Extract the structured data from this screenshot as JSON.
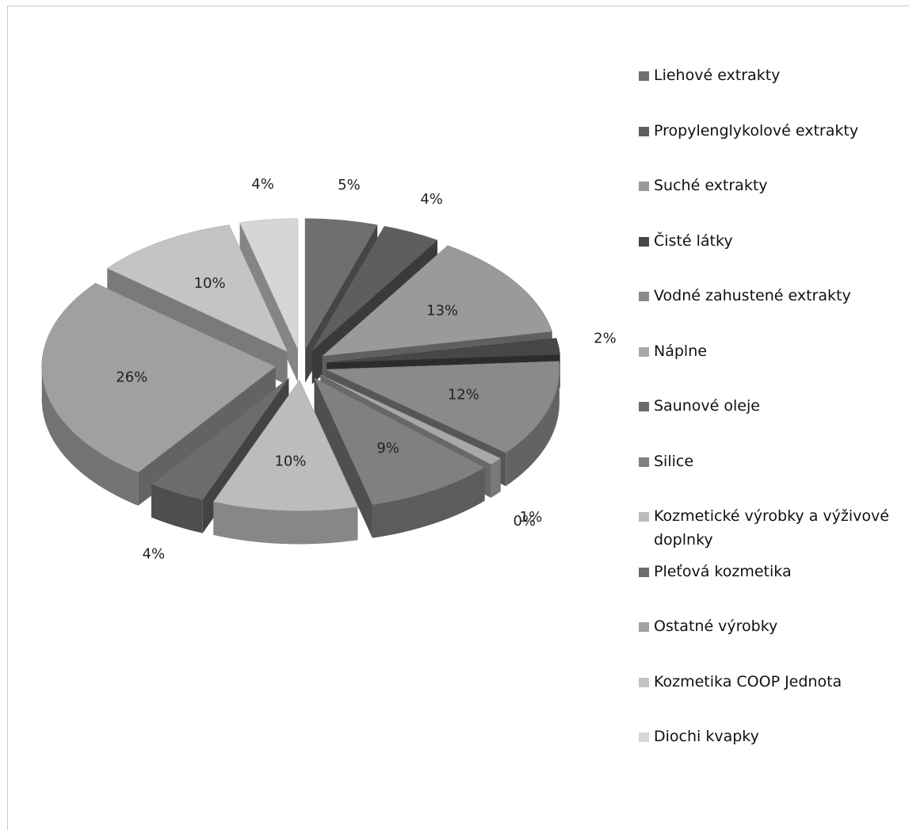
{
  "chart_data": {
    "type": "pie",
    "categories": [
      "Liehové extrakty",
      "Propylenglykolové extrakty",
      "Suché extrakty",
      "Čisté látky",
      "Vodné zahustené extrakty",
      "Náplne",
      "Saunové oleje",
      "Silice",
      "Kozmetické výrobky a výživové doplnky",
      "Pleťová kozmetika",
      "Ostatné výrobky",
      "Kozmetika COOP Jednota",
      "Diochi kvapky"
    ],
    "values": [
      5,
      4,
      13,
      2,
      12,
      1,
      0,
      9,
      10,
      4,
      26,
      10,
      4
    ],
    "labels": [
      "5%",
      "4%",
      "13%",
      "2%",
      "12%",
      "1%",
      "0%",
      "9%",
      "10%",
      "4%",
      "26%",
      "10%",
      "4%"
    ],
    "colors": [
      "#6f6f6f",
      "#5e5e5e",
      "#9a9a9a",
      "#474747",
      "#8a8a8a",
      "#a8a8a8",
      "#6a6a6a",
      "#808080",
      "#bcbcbc",
      "#6c6c6c",
      "#a0a0a0",
      "#c4c4c4",
      "#d6d6d6"
    ],
    "legend_position": "right",
    "style": "exploded-3d-pie"
  }
}
